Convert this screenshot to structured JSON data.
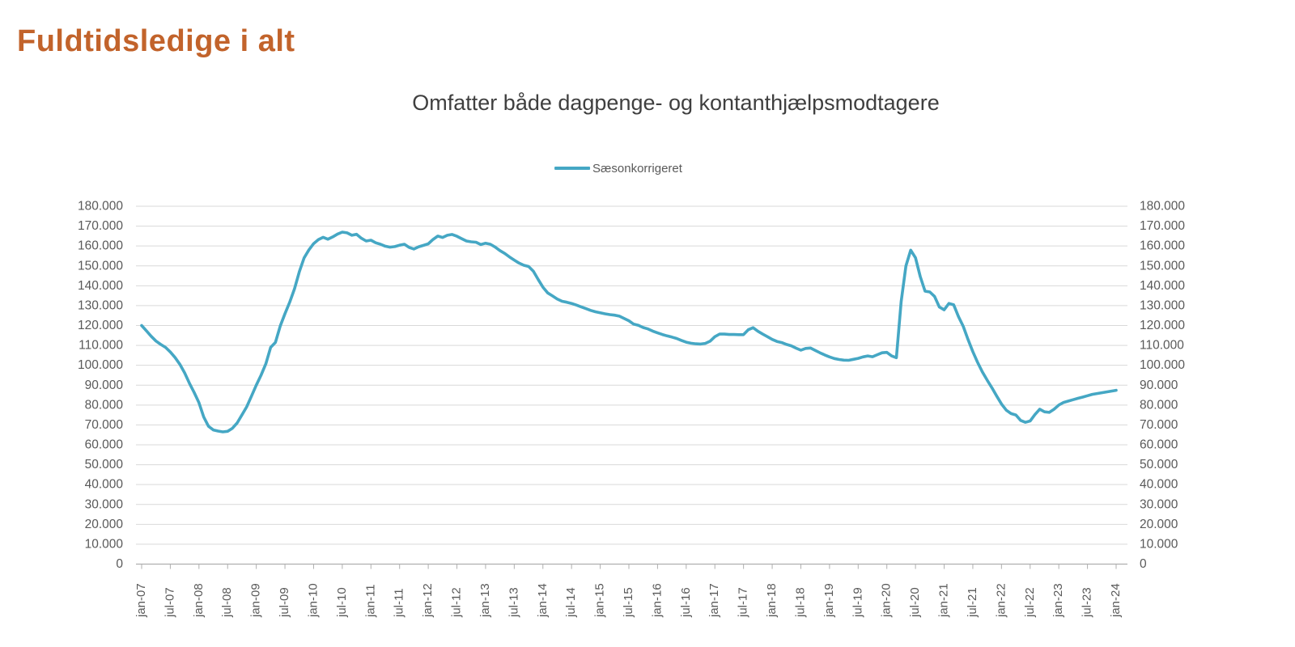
{
  "page": {
    "title": "Fuldtidsledige i alt"
  },
  "colors": {
    "title": "#C2632B",
    "subtitle": "#3F3F3F",
    "axis_text": "#595959",
    "gridline": "#D9D9D9",
    "axis_line": "#AFAFAF",
    "series_line": "#45A7C4",
    "background": "#FFFFFF"
  },
  "chart_data": {
    "type": "line",
    "title": "Omfatter både dagpenge- og kontanthjælpsmodtagere",
    "xlabel": "",
    "ylabel": "",
    "x_frequency": "monthly",
    "x_start": "jan-07",
    "x_end": "jan-24",
    "grid": true,
    "legend_position": "top-center",
    "ylim": [
      0,
      180000
    ],
    "y_tick_step": 10000,
    "y_tick_labels": [
      "0",
      "10.000",
      "20.000",
      "30.000",
      "40.000",
      "50.000",
      "60.000",
      "70.000",
      "80.000",
      "90.000",
      "100.000",
      "110.000",
      "120.000",
      "130.000",
      "140.000",
      "150.000",
      "160.000",
      "170.000",
      "180.000"
    ],
    "y_axis_sides": [
      "left",
      "right"
    ],
    "x_tick_labels": [
      "jan-07",
      "jul-07",
      "jan-08",
      "jul-08",
      "jan-09",
      "jul-09",
      "jan-10",
      "jul-10",
      "jan-11",
      "jul-11",
      "jan-12",
      "jul-12",
      "jan-13",
      "jul-13",
      "jan-14",
      "jul-14",
      "jan-15",
      "jul-15",
      "jan-16",
      "jul-16",
      "jan-17",
      "jul-17",
      "jan-18",
      "jul-18",
      "jan-19",
      "jul-19",
      "jan-20",
      "jul-20",
      "jan-21",
      "jul-21",
      "jan-22",
      "jul-22",
      "jan-23",
      "jul-23",
      "jan-24"
    ],
    "x_ticks_every_n_points": 6,
    "series": [
      {
        "name": "Sæsonkorrigeret",
        "color": "#45A7C4",
        "values": [
          120000,
          117300,
          114600,
          112200,
          110500,
          109000,
          106700,
          103900,
          100500,
          96200,
          91000,
          86300,
          81200,
          74000,
          69300,
          67500,
          66900,
          66500,
          66800,
          68300,
          71000,
          75000,
          79100,
          84500,
          90000,
          95000,
          100800,
          109000,
          111500,
          119700,
          126000,
          131800,
          138500,
          147000,
          154000,
          158000,
          161200,
          163200,
          164400,
          163400,
          164600,
          166000,
          167000,
          166600,
          165400,
          165900,
          163900,
          162500,
          162900,
          161600,
          160900,
          159900,
          159400,
          159700,
          160400,
          160900,
          159300,
          158500,
          159600,
          160300,
          161100,
          163300,
          165000,
          164300,
          165400,
          165800,
          164900,
          163700,
          162500,
          162100,
          161900,
          160700,
          161400,
          160900,
          159500,
          157700,
          156300,
          154500,
          152900,
          151400,
          150300,
          149700,
          147300,
          143200,
          139300,
          136400,
          134900,
          133300,
          132200,
          131700,
          131100,
          130300,
          129400,
          128500,
          127600,
          126900,
          126400,
          125900,
          125500,
          125200,
          124700,
          123600,
          122400,
          120700,
          120100,
          119000,
          118300,
          117200,
          116300,
          115500,
          114800,
          114200,
          113500,
          112500,
          111600,
          111100,
          110800,
          110700,
          111000,
          112100,
          114400,
          115700,
          115700,
          115500,
          115500,
          115400,
          115400,
          117900,
          118900,
          117100,
          115700,
          114400,
          113000,
          112000,
          111400,
          110500,
          109800,
          108600,
          107600,
          108500,
          108700,
          107500,
          106300,
          105200,
          104200,
          103400,
          102900,
          102600,
          102500,
          103000,
          103500,
          104200,
          104700,
          104300,
          105300,
          106300,
          106500,
          104700,
          103800,
          132000,
          150000,
          157900,
          154100,
          144600,
          137300,
          136900,
          134600,
          129300,
          127900,
          131100,
          130400,
          124500,
          119600,
          113000,
          106900,
          101500,
          96700,
          92600,
          88700,
          84500,
          80500,
          77400,
          75700,
          75000,
          72300,
          71300,
          72000,
          75200,
          77900,
          76600,
          76300,
          77900,
          80000,
          81300,
          82000,
          82700,
          83400,
          84000,
          84700,
          85400,
          85800,
          86200,
          86600,
          87000,
          87400
        ]
      }
    ]
  }
}
